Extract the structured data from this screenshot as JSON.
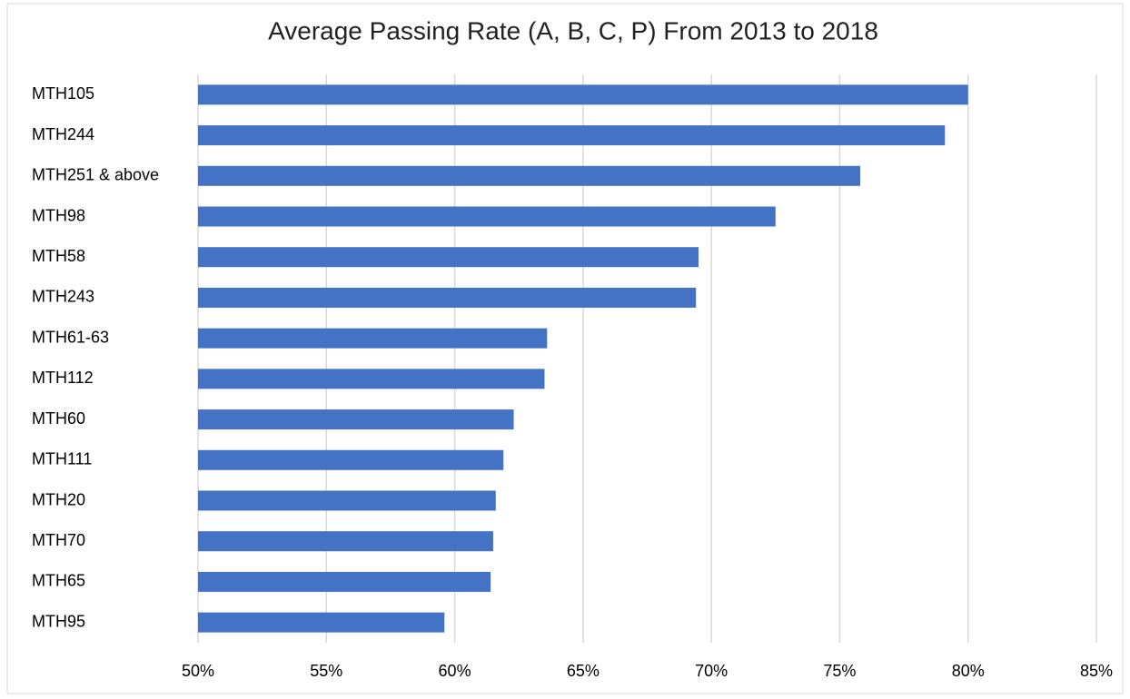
{
  "chart_data": {
    "type": "bar",
    "orientation": "horizontal",
    "title": "Average Passing Rate (A, B, C, P) From 2013 to 2018",
    "categories": [
      "MTH105",
      "MTH244",
      "MTH251 & above",
      "MTH98",
      "MTH58",
      "MTH243",
      "MTH61-63",
      "MTH112",
      "MTH60",
      "MTH111",
      "MTH20",
      "MTH70",
      "MTH65",
      "MTH95"
    ],
    "values": [
      80.0,
      79.1,
      75.8,
      72.5,
      69.5,
      69.4,
      63.6,
      63.5,
      62.3,
      61.9,
      61.6,
      61.5,
      61.4,
      59.6
    ],
    "color": "#4472c4",
    "xlim": [
      50,
      85
    ],
    "xticks": [
      {
        "value": 50,
        "label": "50%"
      },
      {
        "value": 55,
        "label": "55%"
      },
      {
        "value": 60,
        "label": "60%"
      },
      {
        "value": 65,
        "label": "65%"
      },
      {
        "value": 70,
        "label": "70%"
      },
      {
        "value": 75,
        "label": "75%"
      },
      {
        "value": 80,
        "label": "80%"
      },
      {
        "value": 85,
        "label": "85%"
      }
    ],
    "grid": true
  }
}
